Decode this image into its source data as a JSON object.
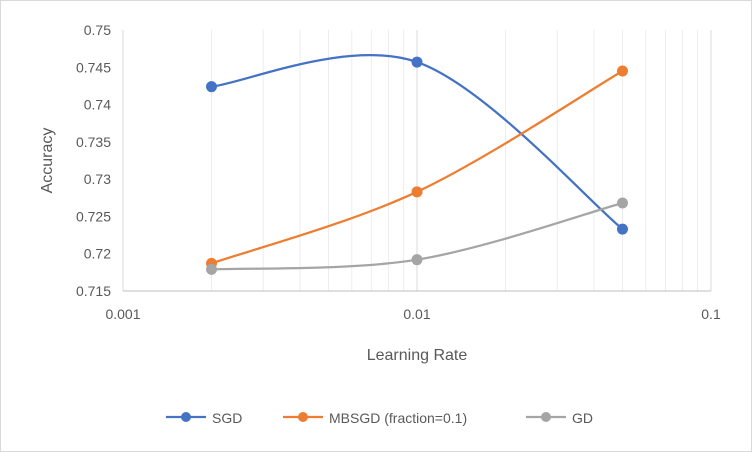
{
  "chart_data": {
    "type": "line",
    "smooth": true,
    "x_scale": "log",
    "xlabel": "Learning Rate",
    "ylabel": "Accuracy",
    "xlim": [
      0.001,
      0.1
    ],
    "ylim": [
      0.715,
      0.75
    ],
    "x_ticks": [
      "0.001",
      "0.01",
      "0.1"
    ],
    "y_ticks": [
      "0.715",
      "0.72",
      "0.725",
      "0.73",
      "0.735",
      "0.74",
      "0.745",
      "0.75"
    ],
    "grid": "vertical",
    "legend_position": "bottom",
    "x": [
      0.002,
      0.01,
      0.05
    ],
    "series": [
      {
        "name": "SGD",
        "color": "#4472C4",
        "values": [
          0.7424,
          0.7457,
          0.7233
        ]
      },
      {
        "name": "MBSGD (fraction=0.1)",
        "color": "#ED7D31",
        "values": [
          0.7187,
          0.7283,
          0.7445
        ]
      },
      {
        "name": "GD",
        "color": "#A5A5A5",
        "values": [
          0.7179,
          0.7192,
          0.7268
        ]
      }
    ]
  }
}
